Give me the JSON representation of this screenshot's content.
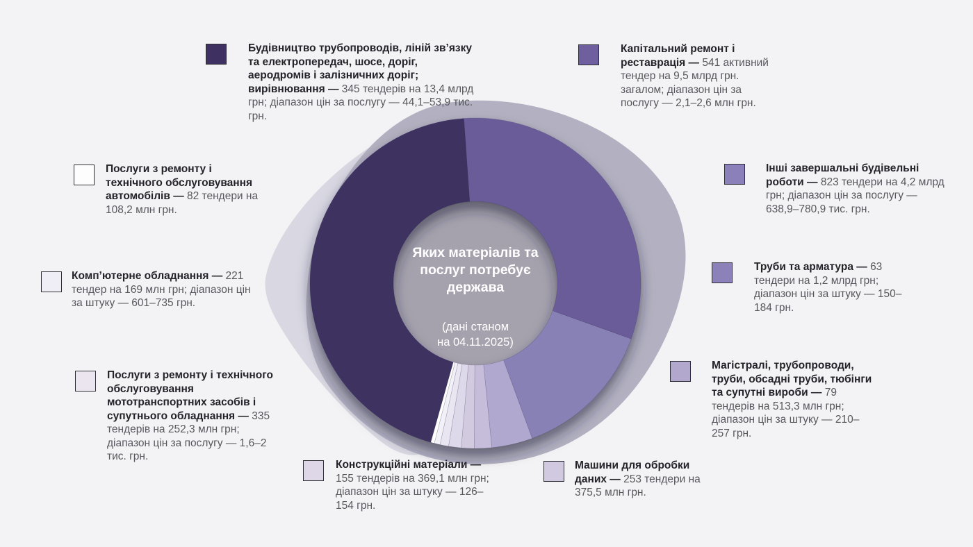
{
  "colors": {
    "background": "#f3f2f4",
    "blob_main": "#b3b1c1",
    "blob_light": "#d8d7e2",
    "center_circle": "#a5a2ae",
    "center_text": "#ffffff",
    "slice_separator": "rgba(45,35,75,0.25)",
    "ring_shadow": "rgba(32,27,52,0.55)"
  },
  "chart_data": {
    "type": "donut",
    "title": "Яких матеріалів та послуг потребує держава",
    "subtitle": "(дані станом на 04.11.2025)",
    "title_lines": "Яких матеріалів та\nпослуг потребує\nдержава",
    "subtitle_lines": "(дані станом\nна 04.11.2025)",
    "unit": "млрд грн",
    "start_angle_deg": -4,
    "slices_clockwise": [
      {
        "id": "kapremont",
        "label": "Капітальний ремонт і реставрація",
        "value_bln": 9.5
      },
      {
        "id": "inshi",
        "label": "Інші завершальні будівельні роботи",
        "value_bln": 4.2
      },
      {
        "id": "truby",
        "label": "Труби та арматура",
        "value_bln": 1.2
      },
      {
        "id": "mahistrali",
        "label": "Магістралі, трубопроводи, труби, обсадні труби, тюбінги та супутні вироби",
        "value_bln": 0.5133
      },
      {
        "id": "mashyny",
        "label": "Машини для обробки даних",
        "value_bln": 0.3755
      },
      {
        "id": "konstruktsiini",
        "label": "Конструкційні матеріали",
        "value_bln": 0.3691
      },
      {
        "id": "moto",
        "label": "Послуги з ремонту і технічного обслуговування мототранспортних засобів і супутнього обладнання",
        "value_bln": 0.2523
      },
      {
        "id": "kompiuterne",
        "label": "Комп’ютерне обладнання",
        "value_bln": 0.169
      },
      {
        "id": "avto",
        "label": "Послуги з ремонту і технічного обслуговування автомобілів",
        "value_bln": 0.1082
      },
      {
        "id": "budivnytstvo",
        "label": "Будівництво трубопроводів, ліній зв’язку та електропередач, шосе, доріг, аеродромів і залізничних доріг; вирівнювання",
        "value_bln": 13.4
      }
    ]
  },
  "categories": [
    {
      "id": "budivnytstvo",
      "label_bold": "Будівництво трубопроводів, ліній зв’язку та електропередач, шосе, доріг, аеродромів і залізничних доріг; вирівнювання — ",
      "label_rest": "345 тендерів на 13,4 млрд грн; діапазон цін за послугу — 44,1–53,9 тис. грн.",
      "tenders": 345,
      "swatch_color": "#3e3061",
      "slice_color": "#3e3061"
    },
    {
      "id": "kapremont",
      "label_bold": "Капітальний ремонт і реставрація — ",
      "label_rest": "541 активний тендер на 9,5 млрд грн. загалом; діапазон цін за послугу — 2,1–2,6 млн грн.",
      "tenders": 541,
      "swatch_color": "#6f5f9e",
      "slice_color": "#6b5c99"
    },
    {
      "id": "avto",
      "label_bold": "Послуги з ремонту і технічного обслуговування автомобілів — ",
      "label_rest": "82 тендери на 108,2 млн грн.",
      "tenders": 82,
      "swatch_color": "#fdfdfe",
      "slice_color": "#ffffff"
    },
    {
      "id": "inshi",
      "label_bold": "Інші завершальні будівельні роботи — ",
      "label_rest": "823 тендери на 4,2 млрд грн; діапазон цін за послугу — 638,9–780,9 тис. грн.",
      "tenders": 823,
      "swatch_color": "#8b80ba",
      "slice_color": "#8881b5"
    },
    {
      "id": "kompiuterne",
      "label_bold": "Комп’ютерне обладнання — ",
      "label_rest": "221 тендер на 169 млн грн; діапазон цін за штуку — 601–735 грн.",
      "tenders": 221,
      "swatch_color": "#efedf5",
      "slice_color": "#f3f1f8"
    },
    {
      "id": "truby",
      "label_bold": "Труби та арматура — ",
      "label_rest": "63 тендери на 1,2 млрд грн; діапазон цін за штуку — 150–184 грн.",
      "tenders": 63,
      "swatch_color": "#8d81b9",
      "slice_color": "#b1a8d0"
    },
    {
      "id": "moto",
      "label_bold": "Послуги з ремонту і технічного обслуговування мототранспортних засобів і супутнього обладнання — ",
      "label_rest": "335 тендерів на 252,3 млн грн; діапазон цін за послугу — 1,6–2 тис. грн.",
      "tenders": 335,
      "swatch_color": "#ebe5f0",
      "slice_color": "#e9e5f1"
    },
    {
      "id": "mahistrali",
      "label_bold": "Магістралі, трубопроводи, труби, обсадні труби, тюбінги та супутні вироби — ",
      "label_rest": "79 тендерів на 513,3 млн грн; діапазон цін за штуку — 210–257 грн.",
      "tenders": 79,
      "swatch_color": "#b2a7cd",
      "slice_color": "#c6bddb"
    },
    {
      "id": "konstruktsiini",
      "label_bold": "Конструкційні матеріали — ",
      "label_rest": "155 тендерів на 369,1 млн грн; діапазон цін за штуку — 126–154 грн.",
      "tenders": 155,
      "swatch_color": "#ded7e8",
      "slice_color": "#ded9ea"
    },
    {
      "id": "mashyny",
      "label_bold": "Машини для обробки даних — ",
      "label_rest": "253 тендери на 375,5 млн грн.",
      "tenders": 253,
      "swatch_color": "#d0c9df",
      "slice_color": "#d2cbe0"
    }
  ]
}
